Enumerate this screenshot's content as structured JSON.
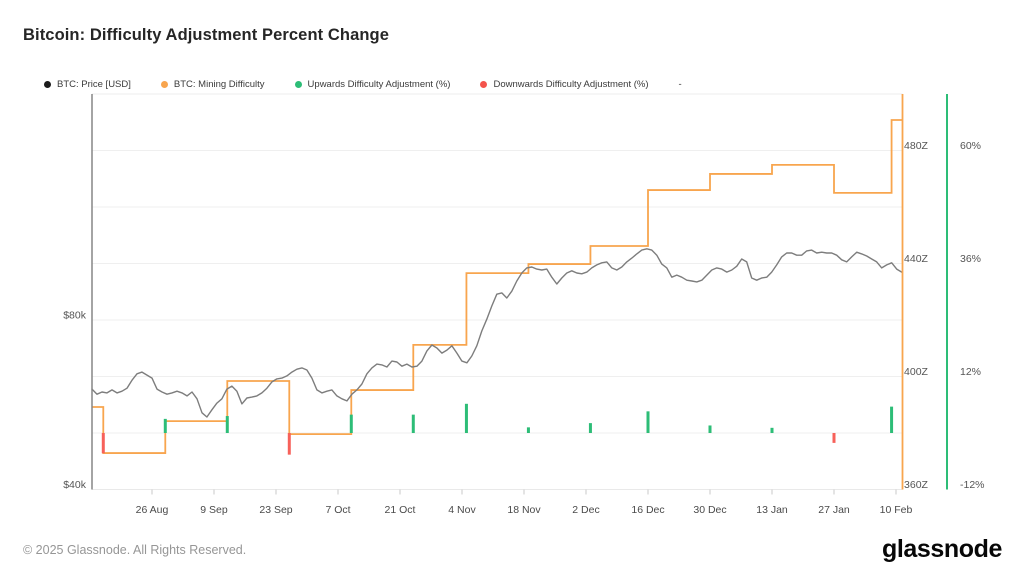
{
  "page": {
    "title": "Bitcoin: Difficulty Adjustment Percent Change"
  },
  "legend": {
    "items": [
      {
        "label": "BTC: Price [USD]",
        "color": "#1b1b1b",
        "marker": "dot"
      },
      {
        "label": "BTC: Mining Difficulty",
        "color": "#f8a54e",
        "marker": "dot"
      },
      {
        "label": "Upwards Difficulty Adjustment (%)",
        "color": "#2dbd77",
        "marker": "dot"
      },
      {
        "label": "Downwards Difficulty Adjustment (%)",
        "color": "#f4544c",
        "marker": "dot"
      },
      {
        "label": "-",
        "color": null,
        "marker": "none"
      }
    ]
  },
  "footer": {
    "copyright": "© 2025 Glassnode. All Rights Reserved.",
    "brand": "glassnode"
  },
  "chart_data": {
    "type": "mixed",
    "title": "Bitcoin: Difficulty Adjustment Percent Change",
    "subtitle": "",
    "layout_hints": {
      "grid": "horizontal-only",
      "legend_position": "top-left",
      "left_axis_line_color": "#858585",
      "right_plot_border_color": "#f8a54e",
      "percent_axis_line_color": "#2dbd77",
      "background": "#ffffff"
    },
    "x_axis": {
      "unit": "date",
      "day0_date": "12 Aug",
      "ticks": [
        {
          "label": "26 Aug",
          "day": 14
        },
        {
          "label": "9 Sep",
          "day": 28
        },
        {
          "label": "23 Sep",
          "day": 42
        },
        {
          "label": "7 Oct",
          "day": 56
        },
        {
          "label": "21 Oct",
          "day": 70
        },
        {
          "label": "4 Nov",
          "day": 84
        },
        {
          "label": "18 Nov",
          "day": 98
        },
        {
          "label": "2 Dec",
          "day": 112
        },
        {
          "label": "16 Dec",
          "day": 126
        },
        {
          "label": "30 Dec",
          "day": 140
        },
        {
          "label": "13 Jan",
          "day": 154
        },
        {
          "label": "27 Jan",
          "day": 168
        },
        {
          "label": "10 Feb",
          "day": 182
        }
      ]
    },
    "price_axis": {
      "side": "left",
      "unit": "USD (thousands)",
      "ticks": [
        {
          "label": "$80k",
          "value": 80
        },
        {
          "label": "$40k",
          "value": 40
        }
      ]
    },
    "difficulty_axis": {
      "side": "right",
      "unit": "Z",
      "ticks": [
        {
          "label": "480Z",
          "value": 480
        },
        {
          "label": "440Z",
          "value": 440
        },
        {
          "label": "400Z",
          "value": 400
        },
        {
          "label": "360Z",
          "value": 360
        }
      ]
    },
    "percent_axis": {
      "side": "far-right",
      "unit": "%",
      "ticks": [
        {
          "label": "60%",
          "value": 60
        },
        {
          "label": "36%",
          "value": 36
        },
        {
          "label": "12%",
          "value": 12
        },
        {
          "label": "-12%",
          "value": -12
        }
      ]
    },
    "series": {
      "price": {
        "name": "BTC: Price [USD]",
        "type": "line",
        "color": "#7d7d7d",
        "start_day": 0.45,
        "step_days": 1.1286,
        "values_usd_k": [
          63.7,
          62.5,
          63.0,
          62.8,
          63.5,
          62.8,
          63.2,
          63.9,
          65.8,
          67.3,
          67.7,
          67.0,
          66.3,
          63.7,
          63.0,
          62.5,
          62.8,
          63.2,
          62.8,
          62.1,
          63.0,
          61.4,
          58.1,
          57.1,
          58.8,
          60.4,
          61.4,
          63.7,
          64.4,
          63.2,
          60.2,
          61.6,
          61.8,
          62.1,
          62.8,
          63.9,
          65.4,
          66.1,
          66.3,
          66.8,
          67.7,
          68.4,
          68.7,
          68.2,
          66.3,
          63.5,
          62.8,
          63.2,
          63.5,
          62.1,
          61.4,
          60.9,
          62.5,
          63.5,
          64.9,
          67.3,
          68.7,
          69.6,
          69.4,
          68.9,
          70.3,
          70.1,
          69.1,
          69.6,
          68.9,
          69.1,
          70.3,
          72.7,
          74.1,
          73.4,
          72.2,
          72.9,
          73.9,
          72.2,
          70.3,
          69.9,
          71.5,
          73.9,
          77.4,
          80.2,
          83.3,
          86.1,
          86.4,
          85.2,
          86.8,
          89.2,
          91.1,
          92.3,
          92.5,
          92.0,
          91.8,
          92.0,
          90.1,
          88.5,
          89.9,
          91.1,
          91.6,
          91.1,
          90.9,
          91.3,
          92.3,
          93.0,
          93.5,
          93.7,
          92.3,
          91.8,
          92.5,
          93.7,
          94.6,
          95.6,
          96.5,
          96.8,
          96.5,
          95.3,
          93.2,
          92.3,
          90.1,
          90.6,
          90.1,
          89.4,
          89.2,
          89.0,
          89.4,
          90.6,
          91.8,
          92.3,
          92.0,
          91.3,
          91.8,
          92.7,
          94.4,
          93.7,
          89.9,
          89.4,
          89.9,
          90.1,
          91.3,
          93.0,
          94.9,
          95.8,
          95.8,
          95.3,
          95.3,
          96.3,
          96.5,
          95.8,
          96.0,
          95.8,
          95.8,
          95.3,
          94.2,
          93.7,
          94.9,
          96.0,
          95.6,
          95.1,
          94.4,
          93.7,
          92.3,
          93.0,
          93.5,
          92.0,
          91.3
        ]
      },
      "difficulty": {
        "name": "BTC: Mining Difficulty",
        "type": "step",
        "color": "#f8a54e",
        "unit": "Z",
        "initial_level": 389.2,
        "adjustments": [
          {
            "date": "15 Aug",
            "day": 3,
            "percent": -4.3,
            "level_after": 372.9
          },
          {
            "date": "29 Aug",
            "day": 17,
            "percent": 3.0,
            "level_after": 384.2
          },
          {
            "date": "12 Sep",
            "day": 31,
            "percent": 3.6,
            "level_after": 398.4
          },
          {
            "date": "26 Sep",
            "day": 45,
            "percent": -4.6,
            "level_after": 379.6
          },
          {
            "date": "10 Oct",
            "day": 59,
            "percent": 3.9,
            "level_after": 395.2
          },
          {
            "date": "24 Oct",
            "day": 73,
            "percent": 3.9,
            "level_after": 411.2
          },
          {
            "date": "5 Nov",
            "day": 85,
            "percent": 6.2,
            "level_after": 436.6
          },
          {
            "date": "19 Nov",
            "day": 99,
            "percent": 1.2,
            "level_after": 439.8
          },
          {
            "date": "3 Dec",
            "day": 113,
            "percent": 2.1,
            "level_after": 446.2
          },
          {
            "date": "16 Dec",
            "day": 126,
            "percent": 4.6,
            "level_after": 466.0
          },
          {
            "date": "30 Dec",
            "day": 140,
            "percent": 1.6,
            "level_after": 471.7
          },
          {
            "date": "13 Jan",
            "day": 154,
            "percent": 1.1,
            "level_after": 474.9
          },
          {
            "date": "27 Jan",
            "day": 168,
            "percent": -2.1,
            "level_after": 465.0
          },
          {
            "date": "9 Feb",
            "day": 181,
            "percent": 5.6,
            "level_after": 490.8
          }
        ]
      },
      "upwards_adjustment": {
        "name": "Upwards Difficulty Adjustment (%)",
        "type": "bar",
        "color": "#2dbd77"
      },
      "downwards_adjustment": {
        "name": "Downwards Difficulty Adjustment (%)",
        "type": "bar",
        "color": "#f7615a"
      }
    }
  }
}
